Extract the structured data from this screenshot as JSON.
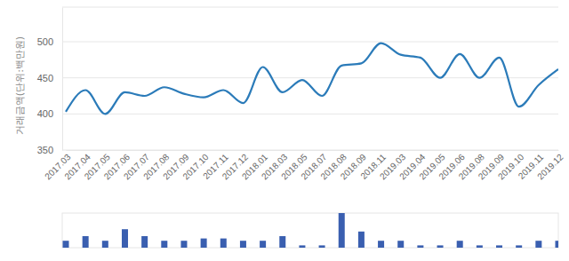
{
  "chart_data": [
    {
      "type": "line",
      "y_label": "거래금액(단위:백만원)",
      "categories": [
        "2017.03",
        "2017.04",
        "2017.05",
        "2017.06",
        "2017.07",
        "2017.08",
        "2017.09",
        "2017.10",
        "2017.11",
        "2017.12",
        "2018.01",
        "2018.03",
        "2018.05",
        "2018.07",
        "2018.08",
        "2018.09",
        "2018.11",
        "2019.03",
        "2019.04",
        "2019.05",
        "2019.06",
        "2019.08",
        "2019.09",
        "2019.10",
        "2019.11",
        "2019.12"
      ],
      "values": [
        403,
        433,
        400,
        430,
        425,
        437,
        428,
        423,
        433,
        415,
        465,
        430,
        447,
        425,
        467,
        470,
        498,
        482,
        478,
        450,
        483,
        450,
        478,
        410,
        440,
        462
      ],
      "color": "#2b7bb9",
      "ylim": [
        350,
        548
      ],
      "yticks": [
        350,
        400,
        450,
        500
      ],
      "grid": true
    },
    {
      "type": "bar",
      "values": [
        3,
        5,
        3,
        8,
        5,
        3,
        3,
        4,
        4,
        3,
        3,
        5,
        1,
        1,
        15,
        7,
        3,
        3,
        1,
        1,
        3,
        1,
        1,
        1,
        3,
        3
      ],
      "color": "#3a5fb0",
      "ylim": [
        0,
        15
      ],
      "tick_labels": false
    }
  ]
}
